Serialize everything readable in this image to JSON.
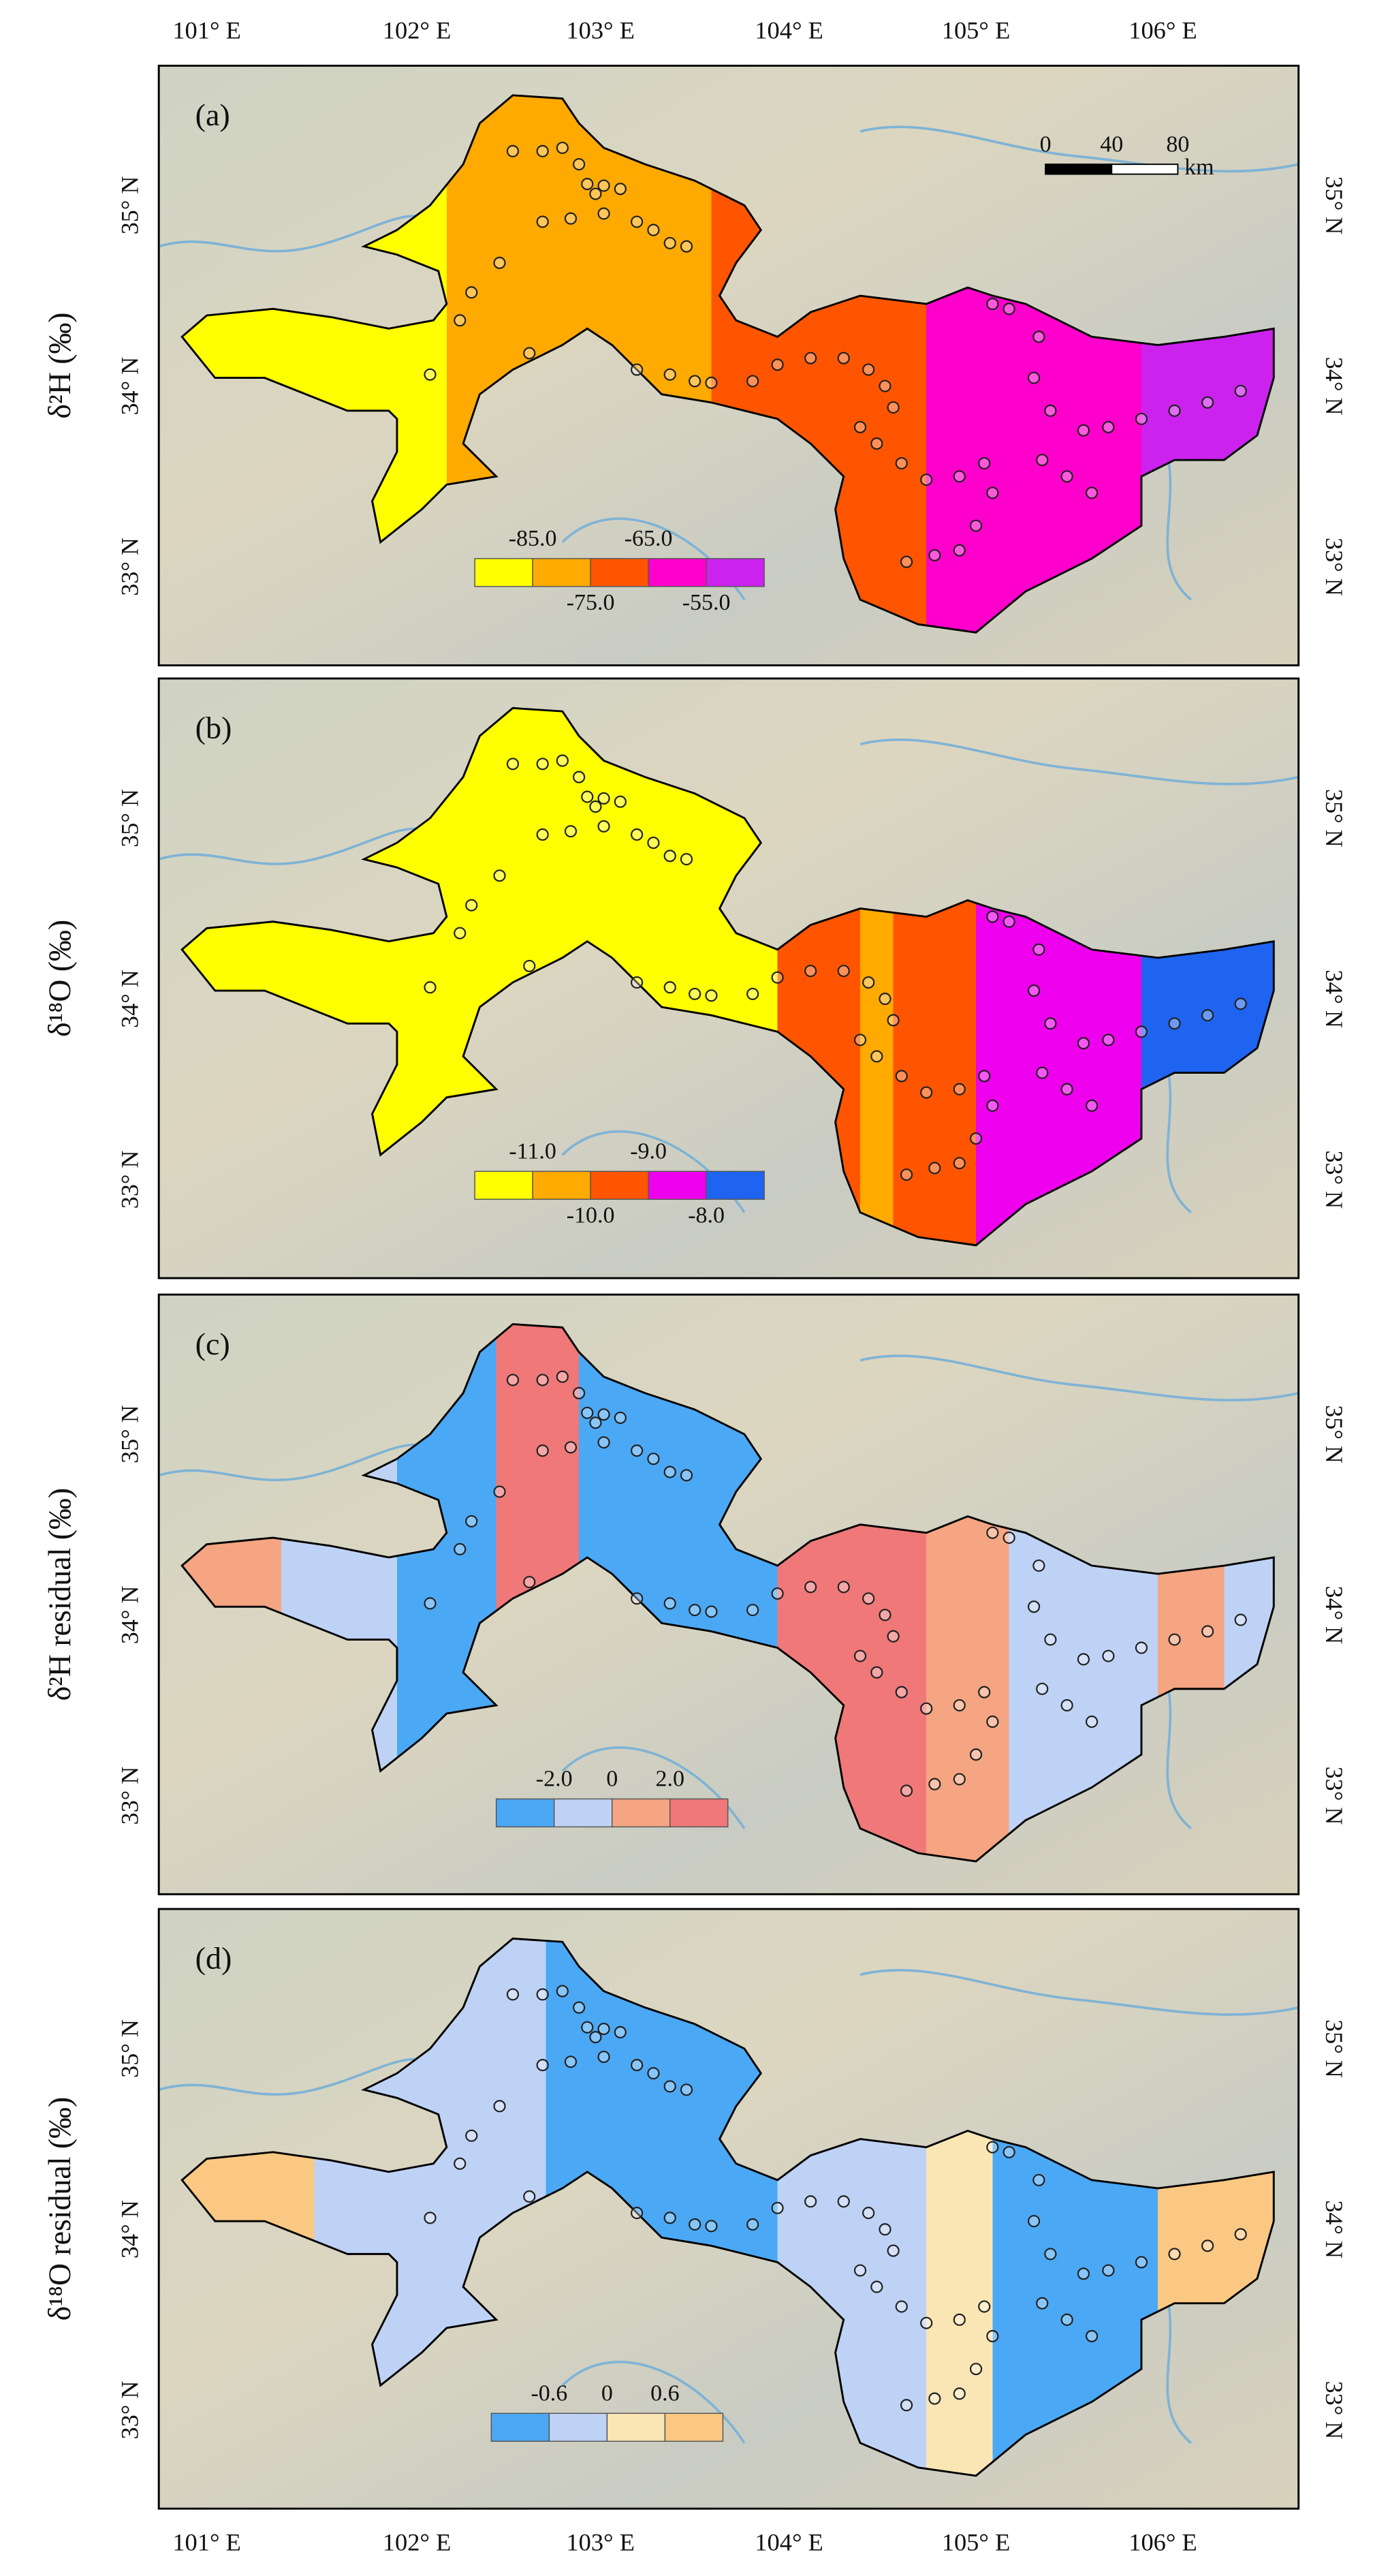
{
  "lon_ticks": [
    "101° E",
    "102° E",
    "103° E",
    "104° E",
    "105° E",
    "106° E"
  ],
  "lat_ticks": [
    "35° N",
    "34° N",
    "33° N"
  ],
  "scale_bar": {
    "labels": [
      "0",
      "40",
      "80"
    ],
    "unit": "km"
  },
  "panels": [
    {
      "tag": "(a)",
      "ylabel": "δ²H (‰)",
      "legend": {
        "labels": [
          "-85.0",
          "-75.0",
          "-65.0",
          "-55.0"
        ],
        "colors": [
          "#ffff00",
          "#ffaa00",
          "#ff5500",
          "#ff00cc",
          "#cc22ee"
        ]
      }
    },
    {
      "tag": "(b)",
      "ylabel": "δ¹⁸O (‰)",
      "legend": {
        "labels": [
          "-11.0",
          "-10.0",
          "-9.0",
          "-8.0"
        ],
        "colors": [
          "#ffff00",
          "#ffaa00",
          "#ff5500",
          "#ee00ee",
          "#1e64f0"
        ]
      }
    },
    {
      "tag": "(c)",
      "ylabel": "δ²H residual (‰)",
      "legend": {
        "labels": [
          "-2.0",
          "0",
          "2.0"
        ],
        "colors": [
          "#4ba8f5",
          "#bed2f5",
          "#f5a582",
          "#f07878"
        ]
      }
    },
    {
      "tag": "(d)",
      "ylabel": "δ¹⁸O residual (‰)",
      "legend": {
        "labels": [
          "-0.6",
          "0",
          "0.6"
        ],
        "colors": [
          "#4ba8f5",
          "#bed2f5",
          "#fae6b4",
          "#fac882"
        ]
      }
    }
  ]
}
